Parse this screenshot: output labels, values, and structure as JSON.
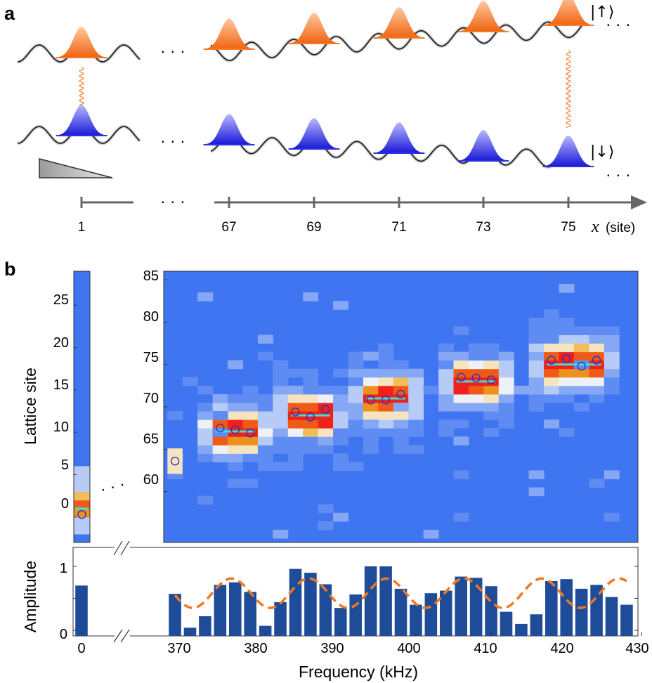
{
  "panel_a": {
    "label": "a",
    "spin_up_label": "|↑⟩",
    "spin_down_label": "|↓⟩",
    "ellipsis": "· · ·",
    "site_ticks": [
      "1",
      "67",
      "69",
      "71",
      "73",
      "75"
    ],
    "x_var": "x",
    "x_unit": "(site)",
    "colors": {
      "up": "#f57c28",
      "down": "#3030e0",
      "lattice": "#222222",
      "axis": "#666666",
      "coupling": "#f57c28"
    }
  },
  "panel_b": {
    "label": "b",
    "ylabel_top": "Lattice site",
    "ylabel_bottom": "Amplitude",
    "xlabel": "Frequency (kHz)",
    "inset_yticks": [
      "25",
      "20",
      "15",
      "10",
      "5",
      "0"
    ],
    "main_yticks": [
      "85",
      "80",
      "75",
      "70",
      "65",
      "60"
    ],
    "amp_yticks": [
      "1",
      "0.5",
      "0"
    ],
    "amp_ytick_labels": [
      "1",
      "0"
    ],
    "xticks": [
      "0",
      "370",
      "380",
      "390",
      "400",
      "410",
      "420",
      "430"
    ],
    "colors": {
      "background": "#3f75f0",
      "peak": "#f0201a",
      "bar": "#1e4c99",
      "fit": "#f07820",
      "fit_line": "#3fe0d0",
      "marker": "#3030c0"
    }
  },
  "chart_data": [
    {
      "type": "bar",
      "title": "",
      "xlabel": "Frequency (kHz)",
      "ylabel": "Amplitude",
      "ylim": [
        0,
        1.2
      ],
      "x_break": [
        0,
        367
      ],
      "series": [
        {
          "x": [
            0,
            368,
            370,
            372,
            374,
            376,
            378,
            380,
            382,
            384,
            386,
            388,
            390,
            392,
            394,
            396,
            398,
            400,
            402,
            404,
            406,
            408,
            410,
            412,
            414,
            416,
            418,
            420,
            422,
            424,
            426,
            428
          ],
          "values": [
            0.7,
            0.57,
            0.04,
            0.22,
            0.71,
            0.75,
            0.6,
            0.07,
            0.44,
            0.96,
            0.9,
            0.72,
            0.35,
            0.56,
            1.0,
            1.0,
            0.65,
            0.4,
            0.58,
            0.62,
            0.84,
            0.82,
            0.69,
            0.29,
            0.1,
            0.25,
            0.77,
            0.8,
            0.65,
            0.71,
            0.52,
            0.4
          ]
        }
      ],
      "fit_curve": {
        "style": "dashed",
        "mean": 0.58,
        "amplitude": 0.23,
        "period_khz": 10.3,
        "peak_khz": 375.5,
        "x_range": [
          368,
          428
        ]
      }
    },
    {
      "type": "heatmap",
      "xlabel": "Frequency (kHz)",
      "ylabel": "Lattice site",
      "ylim": [
        54,
        86
      ],
      "groups": [
        {
          "freqs": [
            374,
            376,
            378
          ],
          "peak_site": 67.1,
          "markers": [
            67.5,
            67.3,
            66.9
          ]
        },
        {
          "freqs": [
            384,
            386,
            388
          ],
          "peak_site": 69.0,
          "markers": [
            69.4,
            68.8,
            69.7
          ]
        },
        {
          "freqs": [
            394,
            396,
            398
          ],
          "peak_site": 71.0,
          "markers": [
            70.8,
            70.8,
            71.5
          ]
        },
        {
          "freqs": [
            406,
            408,
            410
          ],
          "peak_site": 73.0,
          "markers": [
            73.5,
            73.4,
            73.2
          ]
        },
        {
          "freqs": [
            418,
            420,
            422,
            424
          ],
          "peak_site": 75.0,
          "markers": [
            75.5,
            75.7,
            74.8,
            75.5
          ]
        }
      ],
      "extra_markers": [
        {
          "freq": 368,
          "site": 63.6
        }
      ],
      "inset": {
        "freq": 0,
        "ylim": [
          -3,
          29
        ],
        "peak_site": 1.0,
        "marker_site": 0.3
      }
    }
  ]
}
